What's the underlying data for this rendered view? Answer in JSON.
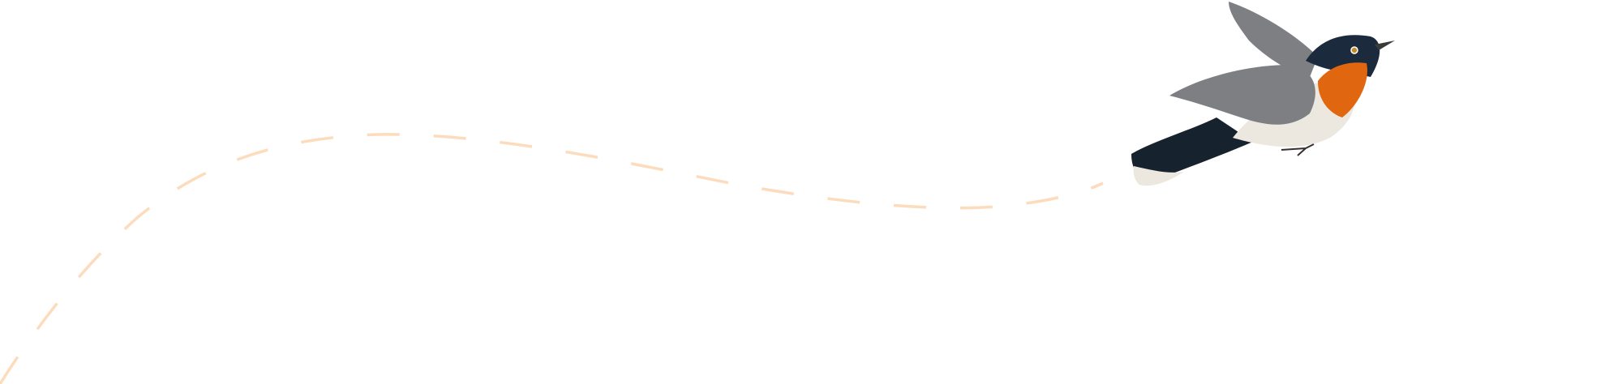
{
  "colors": {
    "background": "#ffffff",
    "flight_path": "#fcdcbd",
    "bird_throat": "#e0660f",
    "bird_head": "#1c2a3e",
    "bird_wing": "#7d7f82",
    "bird_belly": "#ece8df",
    "bird_tail": "#17222f"
  },
  "icons": {
    "flight_path": "dashed-curve",
    "bird": "flycatcher-illustration"
  }
}
